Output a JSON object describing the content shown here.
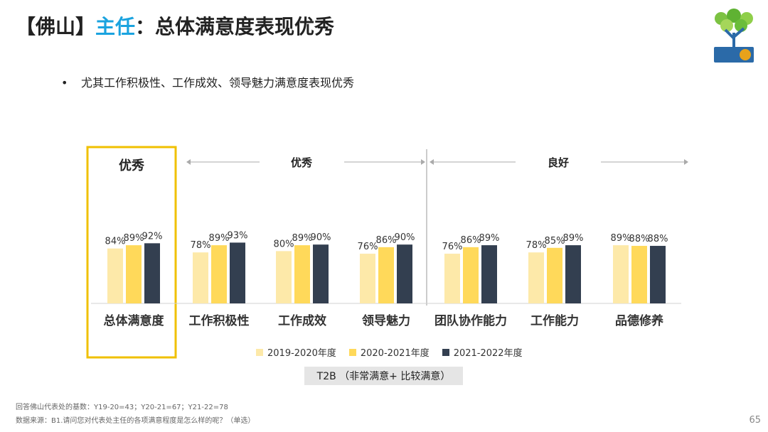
{
  "header": {
    "title_prefix": "【佛山】",
    "title_accent": "主任",
    "title_suffix": "：总体满意度表现优秀"
  },
  "bullet": {
    "symbol": "•",
    "text": "尤其工作积极性、工作成效、领导魅力满意度表现优秀"
  },
  "groups": {
    "highlight_label": "优秀",
    "group1_label": "优秀",
    "group2_label": "良好"
  },
  "legend": [
    {
      "label": "2019-2020年度",
      "color": "#fde9a9"
    },
    {
      "label": "2020-2021年度",
      "color": "#ffd95a"
    },
    {
      "label": "2021-2022年度",
      "color": "#333f50"
    }
  ],
  "t2b_label": "T2B （非常满意+ 比较满意）",
  "footnotes": {
    "base": "回答佛山代表处的基数：Y19-20=43；Y20-21=67；Y21-22=78",
    "source": "数据来源：B1.请问您对代表处主任的各项满意程度是怎么样的呢？（单选）"
  },
  "page_number": "65",
  "colors": {
    "accent": "#1aa3df",
    "highlight_border": "#f0c000",
    "divider": "#999999",
    "arrow": "#aaaaaa"
  },
  "chart_data": {
    "type": "bar",
    "title": "",
    "xlabel": "",
    "ylabel": "T2B",
    "ylim": [
      0,
      100
    ],
    "categories": [
      "总体满意度",
      "工作积极性",
      "工作成效",
      "领导魅力",
      "团队协作能力",
      "工作能力",
      "品德修养"
    ],
    "series": [
      {
        "name": "2019-2020年度",
        "values": [
          84,
          78,
          80,
          76,
          76,
          78,
          89
        ]
      },
      {
        "name": "2020-2021年度",
        "values": [
          89,
          89,
          89,
          86,
          86,
          85,
          88
        ]
      },
      {
        "name": "2021-2022年度",
        "values": [
          92,
          93,
          90,
          90,
          89,
          89,
          88
        ]
      }
    ],
    "value_suffix": "%"
  }
}
